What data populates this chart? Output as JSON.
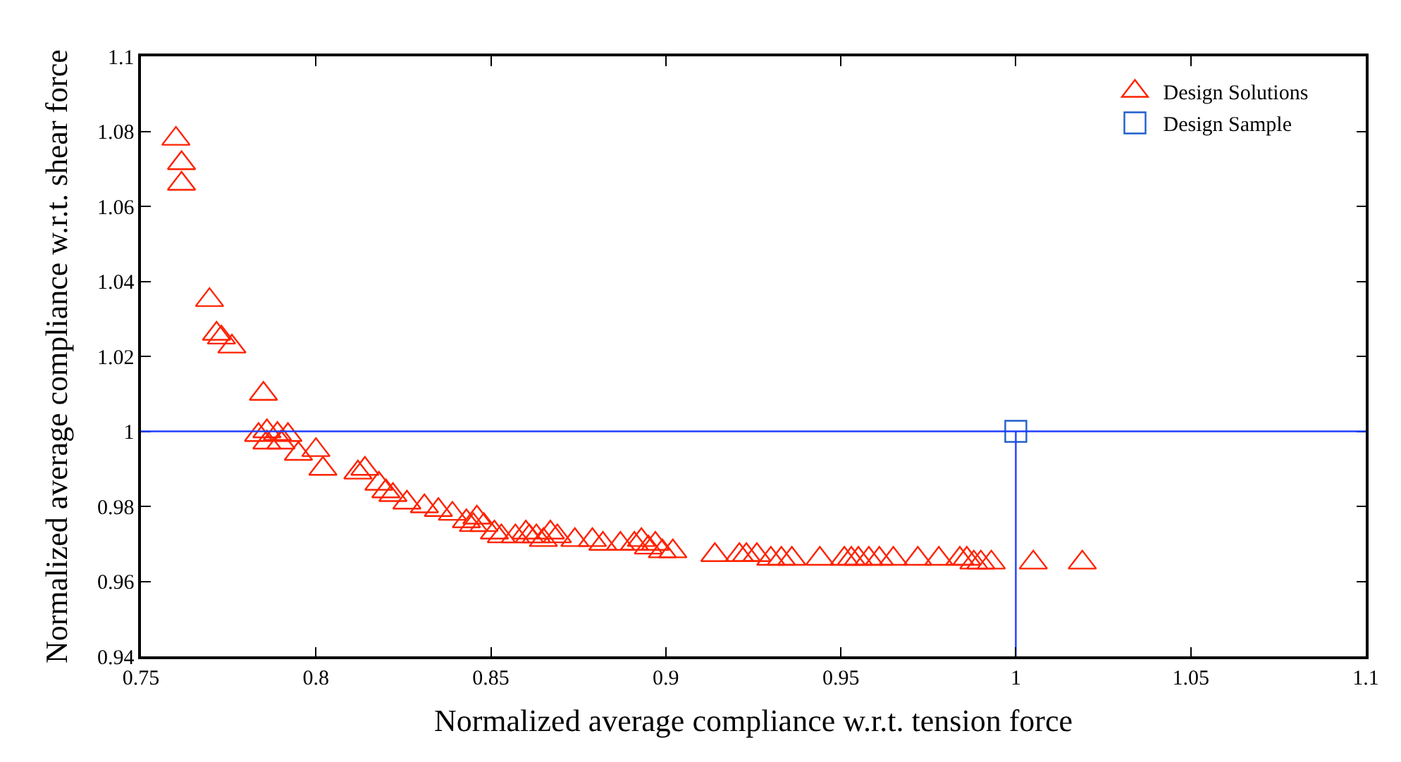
{
  "chart_data": {
    "type": "scatter",
    "xlabel": "Normalized average compliance w.r.t. tension force",
    "ylabel": "Normalized average compliance w.r.t. shear force",
    "xlim": [
      0.75,
      1.1
    ],
    "xticks": [
      0.75,
      0.8,
      0.85,
      0.9,
      0.95,
      1,
      1.05,
      1.1
    ],
    "ylim": [
      0.94,
      1.1
    ],
    "yticks": [
      0.94,
      0.96,
      0.98,
      1,
      1.02,
      1.04,
      1.06,
      1.08,
      1.1
    ],
    "legend": "top right",
    "ref_lines": [
      {
        "axis": "y",
        "value": 1,
        "color": "#1f3fff"
      }
    ],
    "series": [
      {
        "name": "Design Solutions",
        "color": "#ff2200",
        "marker": "triangle",
        "x": [
          0.76,
          0.7616,
          0.7616,
          0.7696,
          0.7716,
          0.773,
          0.776,
          0.785,
          0.7836,
          0.786,
          0.789,
          0.792,
          0.786,
          0.79,
          0.795,
          0.8,
          0.802,
          0.812,
          0.814,
          0.818,
          0.82,
          0.822,
          0.826,
          0.831,
          0.835,
          0.839,
          0.843,
          0.845,
          0.846,
          0.848,
          0.851,
          0.853,
          0.857,
          0.86,
          0.861,
          0.863,
          0.865,
          0.867,
          0.869,
          0.874,
          0.879,
          0.882,
          0.887,
          0.891,
          0.893,
          0.895,
          0.897,
          0.899,
          0.902,
          0.914,
          0.921,
          0.923,
          0.926,
          0.93,
          0.933,
          0.936,
          0.944,
          0.951,
          0.953,
          0.955,
          0.958,
          0.961,
          0.965,
          0.972,
          0.978,
          0.984,
          0.986,
          0.988,
          0.99,
          0.993,
          1.005,
          1.019
        ],
        "values": [
          1.078,
          1.0715,
          1.066,
          1.035,
          1.026,
          1.025,
          1.0226,
          1.01,
          0.999,
          1.0,
          0.9993,
          0.999,
          0.997,
          0.997,
          0.994,
          0.995,
          0.99,
          0.989,
          0.99,
          0.986,
          0.984,
          0.983,
          0.981,
          0.98,
          0.979,
          0.978,
          0.976,
          0.975,
          0.977,
          0.975,
          0.973,
          0.972,
          0.972,
          0.973,
          0.972,
          0.972,
          0.971,
          0.973,
          0.972,
          0.971,
          0.971,
          0.97,
          0.97,
          0.97,
          0.971,
          0.969,
          0.97,
          0.968,
          0.968,
          0.967,
          0.967,
          0.967,
          0.967,
          0.966,
          0.966,
          0.966,
          0.966,
          0.966,
          0.966,
          0.966,
          0.966,
          0.966,
          0.966,
          0.966,
          0.966,
          0.966,
          0.966,
          0.965,
          0.965,
          0.965,
          0.965,
          0.965
        ]
      },
      {
        "name": "Design Sample",
        "color": "#1f5fcc",
        "marker": "square",
        "x": [
          1
        ],
        "values": [
          1
        ]
      },
      {
        "type": "line",
        "color": "#1f3fff",
        "marker": "none",
        "x": [
          1,
          1
        ],
        "values": [
          0.94,
          1
        ]
      }
    ]
  }
}
